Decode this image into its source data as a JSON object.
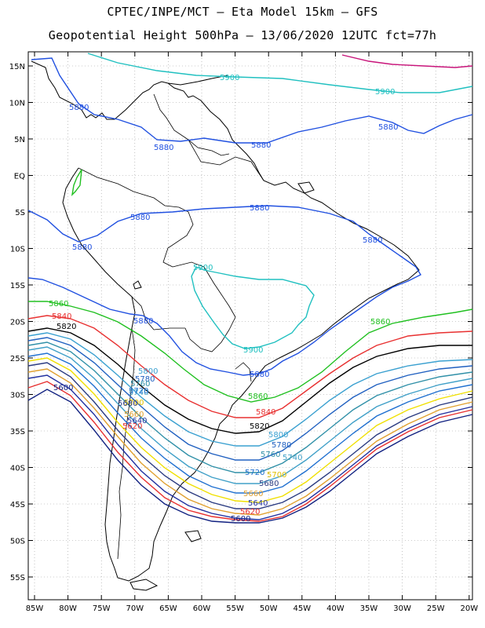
{
  "header": {
    "title_line1": "CPTEC/INPE/MCT –  Eta Model 15km – GFS",
    "title_line2": "Geopotential Height 500hPa – 13/06/2020 12UTC fct=77h"
  },
  "axes": {
    "lat_labels": [
      "15N",
      "10N",
      "5N",
      "EQ",
      "5S",
      "10S",
      "15S",
      "20S",
      "25S",
      "30S",
      "35S",
      "40S",
      "45S",
      "50S",
      "55S"
    ],
    "lon_labels": [
      "85W",
      "80W",
      "75W",
      "70W",
      "65W",
      "60W",
      "55W",
      "50W",
      "45W",
      "40W",
      "35W",
      "30W",
      "25W",
      "20W"
    ]
  },
  "contours": [
    {
      "value": "5900",
      "color": "#c8147a"
    },
    {
      "value": "5900",
      "color": "#20c0c0"
    },
    {
      "value": "5880",
      "color": "#2050e0"
    },
    {
      "value": "5860",
      "color": "#20c020"
    },
    {
      "value": "5840",
      "color": "#e83030"
    },
    {
      "value": "5820",
      "color": "#000000"
    },
    {
      "value": "5800",
      "color": "#3aa0d0"
    },
    {
      "value": "5780",
      "color": "#2060c0"
    },
    {
      "value": "5760",
      "color": "#3090a8"
    },
    {
      "value": "5740",
      "color": "#40a0c8"
    },
    {
      "value": "5720",
      "color": "#2070d0"
    },
    {
      "value": "5700",
      "color": "#f0e000"
    },
    {
      "value": "5680",
      "color": "#2a3a80"
    },
    {
      "value": "5660",
      "color": "#e0a030"
    },
    {
      "value": "5640",
      "color": "#2030a0"
    },
    {
      "value": "5620",
      "color": "#e83030"
    },
    {
      "value": "5600",
      "color": "#102080"
    }
  ],
  "labels": {
    "c5900_a": "5900",
    "c5900_b": "5900",
    "c5900_c": "5900",
    "c5900_d": "5900",
    "c5880_a": "5880",
    "c5880_b": "5880",
    "c5880_c": "5880",
    "c5880_d": "5880",
    "c5880_e": "5880",
    "c5880_f": "5880",
    "c5880_g": "5880",
    "c5880_h": "5880",
    "c5880_i": "5880",
    "c5880_j": "5880",
    "c5860_a": "5860",
    "c5860_b": "5860",
    "c5860_c": "5860",
    "c5840_a": "5840",
    "c5840_b": "5840",
    "c5820_a": "5820",
    "c5820_b": "5820",
    "c5800_a": "5800",
    "c5800_b": "5800",
    "c5780_a": "5780",
    "c5780_b": "5780",
    "c5760_a": "5760",
    "c5760_b": "5760",
    "c5740_a": "5740",
    "c5740_b": "5740",
    "c5720_a": "5720",
    "c5720_b": "5720",
    "c5700_a": "5700",
    "c5700_b": "5700",
    "c5680_a": "5680",
    "c5680_b": "5680",
    "c5660_a": "5660",
    "c5660_b": "5660",
    "c5640_a": "5640",
    "c5640_b": "5640",
    "c5620_a": "5620",
    "c5620_b": "5620",
    "c5600_a": "5600",
    "c5600_b": "5600"
  }
}
